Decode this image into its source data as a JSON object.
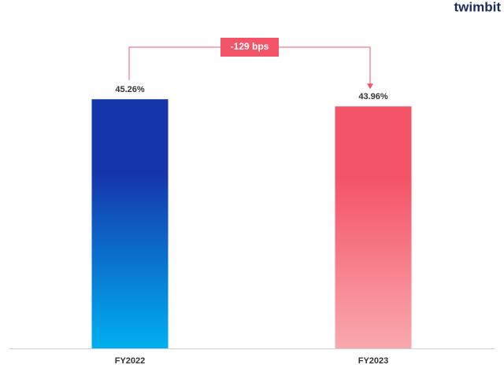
{
  "logo": "twimbit",
  "chart_data": {
    "type": "bar",
    "categories": [
      "FY2022",
      "FY2023"
    ],
    "values": [
      45.26,
      43.96
    ],
    "value_labels": [
      "45.26%",
      "43.96%"
    ],
    "gradients": [
      [
        "#1536ab",
        "#00b0ef"
      ],
      [
        "#f45468",
        "#f9a9ae"
      ]
    ],
    "annotation": "-129 bps",
    "annotation_color": "#f45468",
    "ylim": [
      0,
      50
    ]
  }
}
